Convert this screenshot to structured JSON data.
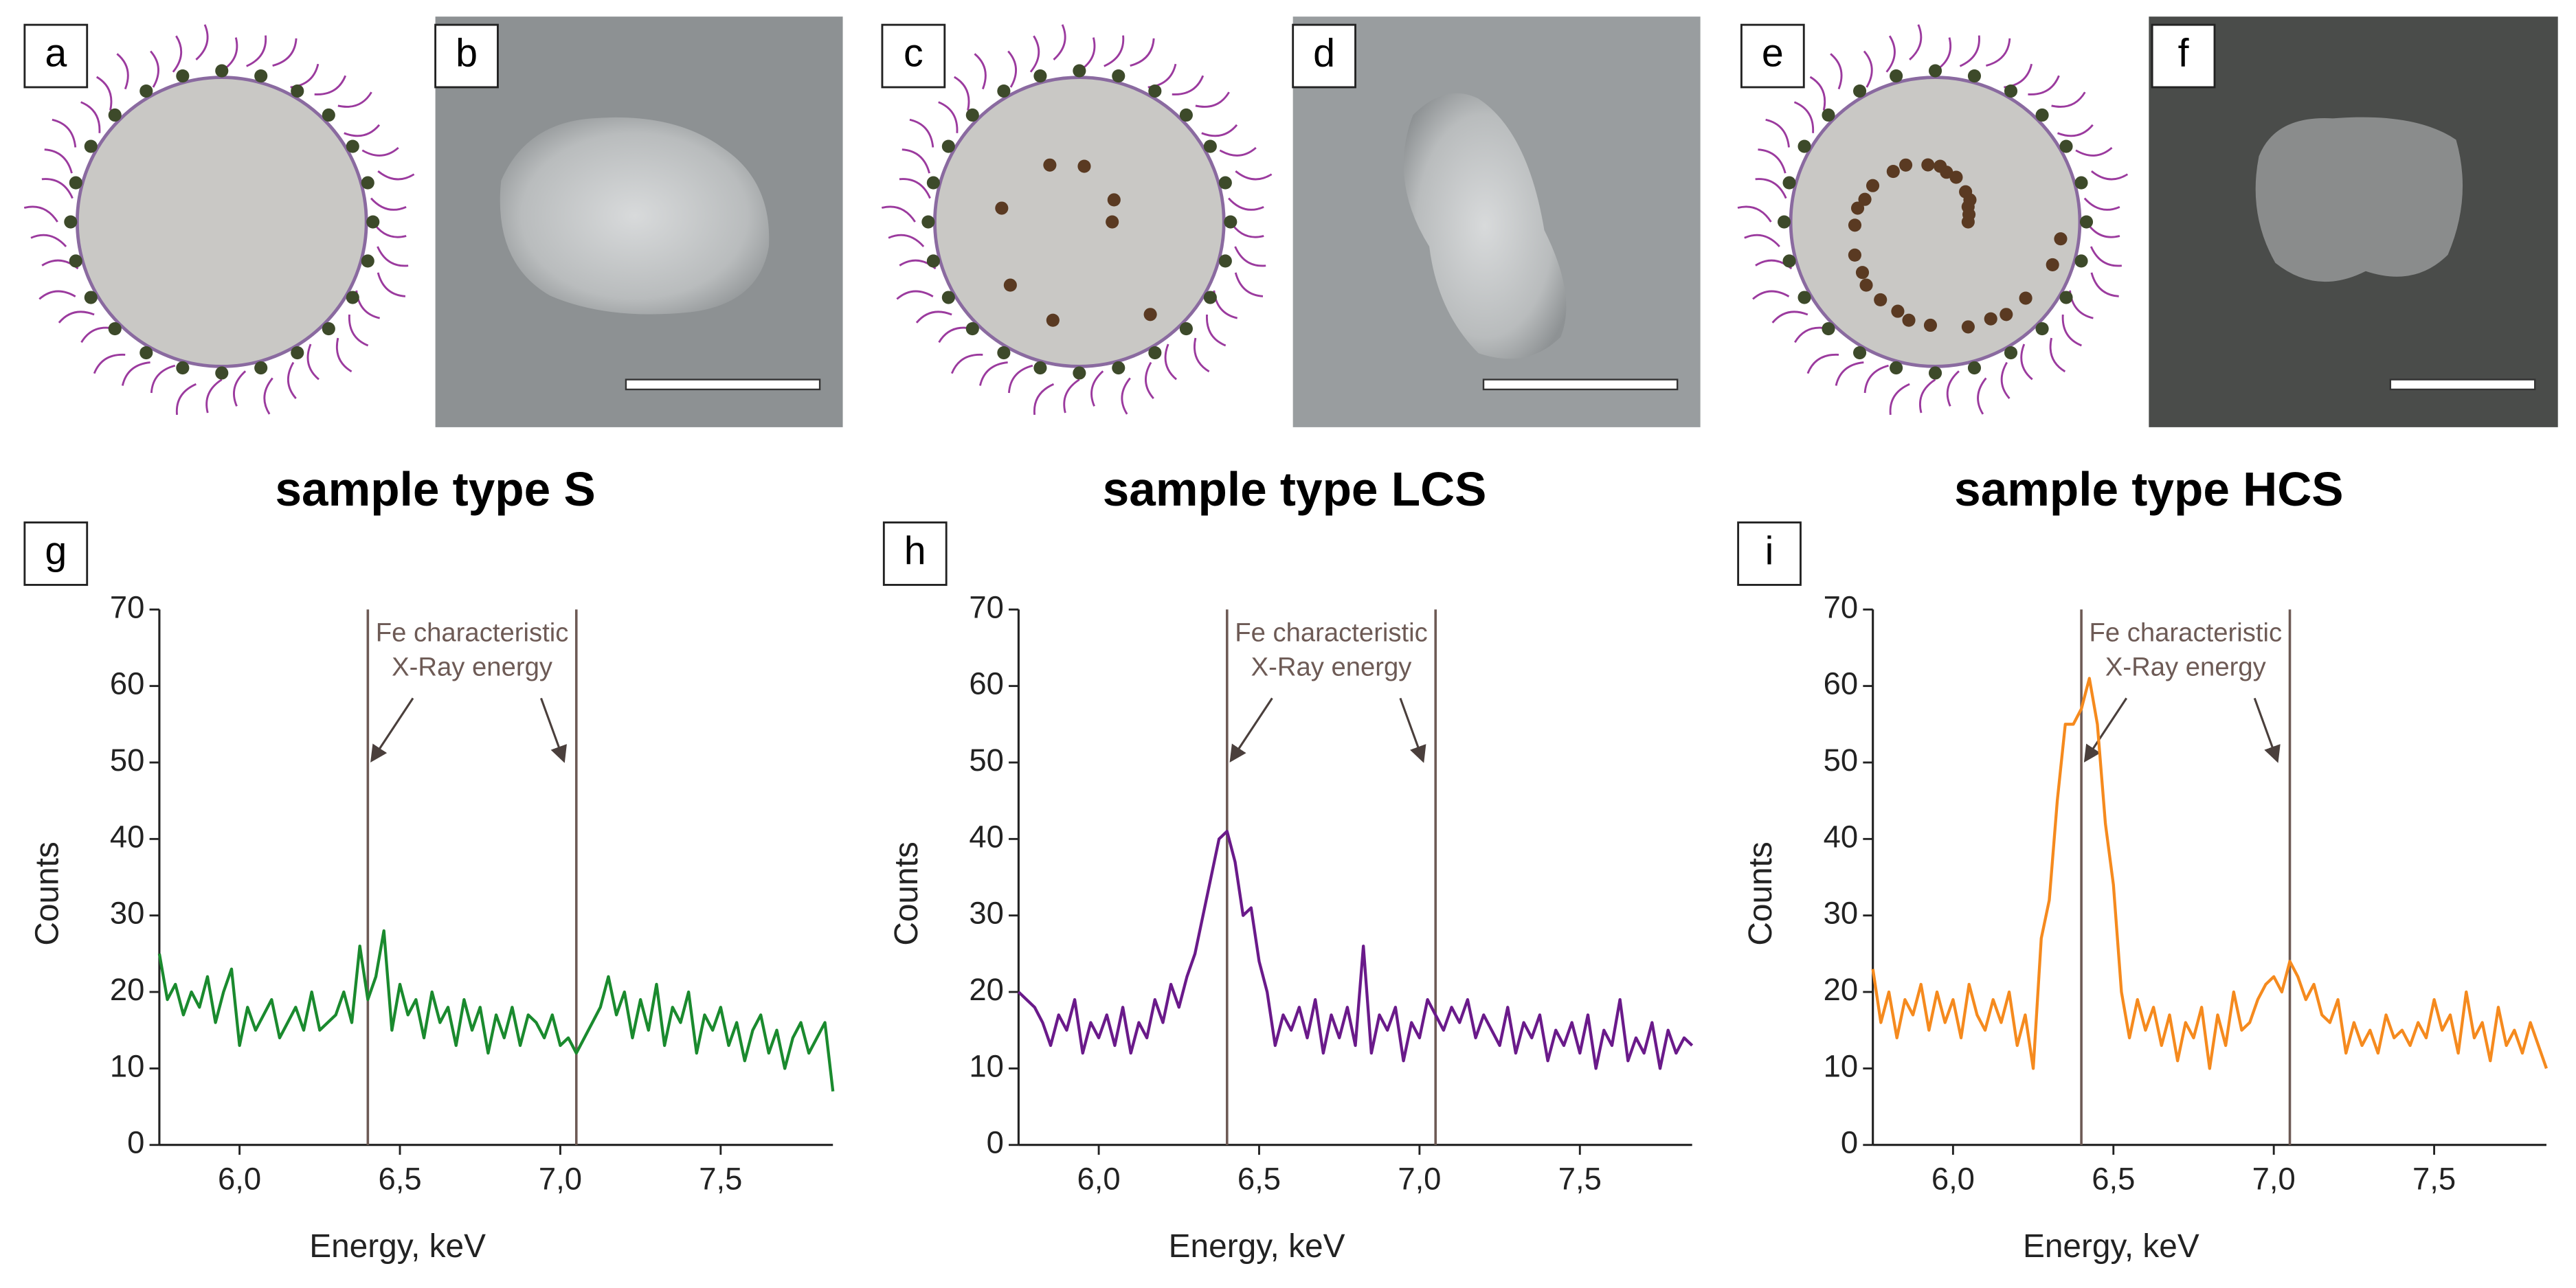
{
  "image_panels": [
    {
      "label": "a"
    },
    {
      "label": "b"
    },
    {
      "label": "c"
    },
    {
      "label": "d"
    },
    {
      "label": "e"
    },
    {
      "label": "f"
    }
  ],
  "chart_data": [
    {
      "type": "line",
      "panel_label": "g",
      "title": "sample type S",
      "x_label": "Energy, keV",
      "y_label": "Counts",
      "annotation_lines": [
        "Fe characteristic",
        "X-Ray energy"
      ],
      "marker_lines": [
        6.4,
        7.05
      ],
      "marker_color": "#6d5a55",
      "color": "#1a8a2e",
      "xlim": [
        5.75,
        7.85
      ],
      "ylim": [
        0,
        70
      ],
      "xticks": [
        {
          "value": 6.0,
          "label": "6,0"
        },
        {
          "value": 6.5,
          "label": "6,5"
        },
        {
          "value": 7.0,
          "label": "7,0"
        },
        {
          "value": 7.5,
          "label": "7,5"
        }
      ],
      "yticks": [
        0,
        10,
        20,
        30,
        40,
        50,
        60,
        70
      ],
      "x": [
        5.75,
        5.775,
        5.8,
        5.825,
        5.85,
        5.875,
        5.9,
        5.925,
        5.95,
        5.975,
        6.0,
        6.025,
        6.05,
        6.075,
        6.1,
        6.125,
        6.15,
        6.175,
        6.2,
        6.225,
        6.25,
        6.275,
        6.3,
        6.325,
        6.35,
        6.375,
        6.4,
        6.425,
        6.45,
        6.475,
        6.5,
        6.525,
        6.55,
        6.575,
        6.6,
        6.625,
        6.65,
        6.675,
        6.7,
        6.725,
        6.75,
        6.775,
        6.8,
        6.825,
        6.85,
        6.875,
        6.9,
        6.925,
        6.95,
        6.975,
        7.0,
        7.025,
        7.05,
        7.075,
        7.1,
        7.125,
        7.15,
        7.175,
        7.2,
        7.225,
        7.25,
        7.275,
        7.3,
        7.325,
        7.35,
        7.375,
        7.4,
        7.425,
        7.45,
        7.475,
        7.5,
        7.525,
        7.55,
        7.575,
        7.6,
        7.625,
        7.65,
        7.675,
        7.7,
        7.725,
        7.75,
        7.775,
        7.8,
        7.825,
        7.85
      ],
      "values": [
        25,
        19,
        21,
        17,
        20,
        18,
        22,
        16,
        20,
        23,
        13,
        18,
        15,
        17,
        19,
        14,
        16,
        18,
        15,
        20,
        15,
        16,
        17,
        20,
        16,
        26,
        19,
        22,
        28,
        15,
        21,
        17,
        19,
        14,
        20,
        16,
        18,
        13,
        19,
        15,
        18,
        12,
        17,
        14,
        18,
        13,
        17,
        16,
        14,
        17,
        13,
        14,
        12,
        14,
        16,
        18,
        22,
        17,
        20,
        14,
        19,
        15,
        21,
        13,
        18,
        16,
        20,
        12,
        17,
        15,
        18,
        13,
        16,
        11,
        15,
        17,
        12,
        15,
        10,
        14,
        16,
        12,
        14,
        16,
        7
      ]
    },
    {
      "type": "line",
      "panel_label": "h",
      "title": "sample type LCS",
      "x_label": "Energy, keV",
      "y_label": "Counts",
      "annotation_lines": [
        "Fe characteristic",
        "X-Ray energy"
      ],
      "marker_lines": [
        6.4,
        7.05
      ],
      "marker_color": "#6d5a55",
      "color": "#6a1a8a",
      "xlim": [
        5.75,
        7.85
      ],
      "ylim": [
        0,
        70
      ],
      "xticks": [
        {
          "value": 6.0,
          "label": "6,0"
        },
        {
          "value": 6.5,
          "label": "6,5"
        },
        {
          "value": 7.0,
          "label": "7,0"
        },
        {
          "value": 7.5,
          "label": "7,5"
        }
      ],
      "yticks": [
        0,
        10,
        20,
        30,
        40,
        50,
        60,
        70
      ],
      "x": [
        5.75,
        5.775,
        5.8,
        5.825,
        5.85,
        5.875,
        5.9,
        5.925,
        5.95,
        5.975,
        6.0,
        6.025,
        6.05,
        6.075,
        6.1,
        6.125,
        6.15,
        6.175,
        6.2,
        6.225,
        6.25,
        6.275,
        6.3,
        6.325,
        6.35,
        6.375,
        6.4,
        6.425,
        6.45,
        6.475,
        6.5,
        6.525,
        6.55,
        6.575,
        6.6,
        6.625,
        6.65,
        6.675,
        6.7,
        6.725,
        6.75,
        6.775,
        6.8,
        6.825,
        6.85,
        6.875,
        6.9,
        6.925,
        6.95,
        6.975,
        7.0,
        7.025,
        7.05,
        7.075,
        7.1,
        7.125,
        7.15,
        7.175,
        7.2,
        7.225,
        7.25,
        7.275,
        7.3,
        7.325,
        7.35,
        7.375,
        7.4,
        7.425,
        7.45,
        7.475,
        7.5,
        7.525,
        7.55,
        7.575,
        7.6,
        7.625,
        7.65,
        7.675,
        7.7,
        7.725,
        7.75,
        7.775,
        7.8,
        7.825,
        7.85
      ],
      "values": [
        20,
        19,
        18,
        16,
        13,
        17,
        15,
        19,
        12,
        16,
        14,
        17,
        13,
        18,
        12,
        16,
        14,
        19,
        16,
        21,
        18,
        22,
        25,
        30,
        35,
        40,
        41,
        37,
        30,
        31,
        24,
        20,
        13,
        17,
        15,
        18,
        14,
        19,
        12,
        17,
        14,
        18,
        13,
        26,
        12,
        17,
        15,
        18,
        11,
        16,
        14,
        19,
        17,
        15,
        18,
        16,
        19,
        14,
        17,
        15,
        13,
        18,
        12,
        16,
        14,
        17,
        11,
        15,
        13,
        16,
        12,
        17,
        10,
        15,
        13,
        19,
        11,
        14,
        12,
        16,
        10,
        15,
        12,
        14,
        13
      ]
    },
    {
      "type": "line",
      "panel_label": "i",
      "title": "sample type HCS",
      "x_label": "Energy, keV",
      "y_label": "Counts",
      "annotation_lines": [
        "Fe characteristic",
        "X-Ray energy"
      ],
      "marker_lines": [
        6.4,
        7.05
      ],
      "marker_color": "#6d5a55",
      "color": "#f58a1e",
      "xlim": [
        5.75,
        7.85
      ],
      "ylim": [
        0,
        70
      ],
      "xticks": [
        {
          "value": 6.0,
          "label": "6,0"
        },
        {
          "value": 6.5,
          "label": "6,5"
        },
        {
          "value": 7.0,
          "label": "7,0"
        },
        {
          "value": 7.5,
          "label": "7,5"
        }
      ],
      "yticks": [
        0,
        10,
        20,
        30,
        40,
        50,
        60,
        70
      ],
      "x": [
        5.75,
        5.775,
        5.8,
        5.825,
        5.85,
        5.875,
        5.9,
        5.925,
        5.95,
        5.975,
        6.0,
        6.025,
        6.05,
        6.075,
        6.1,
        6.125,
        6.15,
        6.175,
        6.2,
        6.225,
        6.25,
        6.275,
        6.3,
        6.325,
        6.35,
        6.375,
        6.4,
        6.425,
        6.45,
        6.475,
        6.5,
        6.525,
        6.55,
        6.575,
        6.6,
        6.625,
        6.65,
        6.675,
        6.7,
        6.725,
        6.75,
        6.775,
        6.8,
        6.825,
        6.85,
        6.875,
        6.9,
        6.925,
        6.95,
        6.975,
        7.0,
        7.025,
        7.05,
        7.075,
        7.1,
        7.125,
        7.15,
        7.175,
        7.2,
        7.225,
        7.25,
        7.275,
        7.3,
        7.325,
        7.35,
        7.375,
        7.4,
        7.425,
        7.45,
        7.475,
        7.5,
        7.525,
        7.55,
        7.575,
        7.6,
        7.625,
        7.65,
        7.675,
        7.7,
        7.725,
        7.75,
        7.775,
        7.8,
        7.825,
        7.85
      ],
      "values": [
        23,
        16,
        20,
        14,
        19,
        17,
        21,
        15,
        20,
        16,
        19,
        14,
        21,
        17,
        15,
        19,
        16,
        20,
        13,
        17,
        10,
        27,
        32,
        45,
        55,
        55,
        57,
        61,
        55,
        42,
        34,
        20,
        14,
        19,
        15,
        18,
        13,
        17,
        11,
        16,
        14,
        18,
        10,
        17,
        13,
        20,
        15,
        16,
        19,
        21,
        22,
        20,
        24,
        22,
        19,
        21,
        17,
        16,
        19,
        12,
        16,
        13,
        15,
        12,
        17,
        14,
        15,
        13,
        16,
        14,
        19,
        15,
        17,
        12,
        20,
        14,
        16,
        11,
        18,
        13,
        15,
        12,
        16,
        13,
        10
      ]
    }
  ]
}
